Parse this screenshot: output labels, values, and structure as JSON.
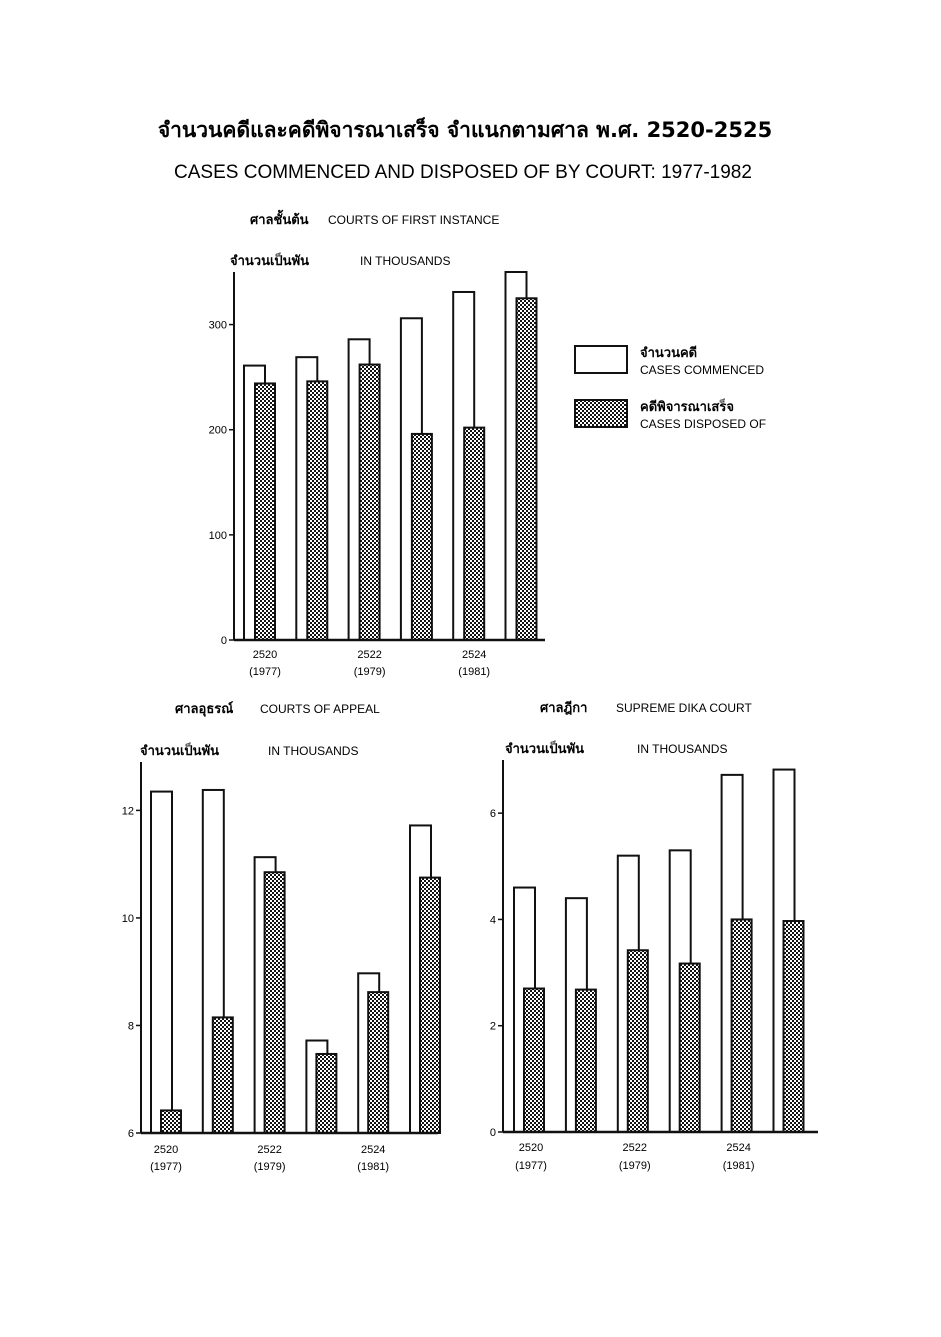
{
  "title": {
    "thai": "จำนวนคดีและคดีพิจารณาเสร็จ จำแนกตามศาล พ.ศ. 2520-2525",
    "english": "CASES COMMENCED AND DISPOSED OF BY COURT: 1977-1982"
  },
  "legend": {
    "commenced_thai": "จำนวนคดี",
    "commenced_eng": "CASES COMMENCED",
    "disposed_thai": "คดีพิจารณาเสร็จ",
    "disposed_eng": "CASES DISPOSED OF"
  },
  "chart_data": [
    {
      "type": "bar",
      "title_thai": "ศาลชั้นต้น",
      "title": "COURTS OF FIRST INSTANCE",
      "unit_thai": "จำนวนเป็นพัน",
      "unit": "IN THOUSANDS",
      "x_labels": [
        {
          "index": 0,
          "year": "2520",
          "ce": "(1977)"
        },
        {
          "index": 2,
          "year": "2522",
          "ce": "(1979)"
        },
        {
          "index": 4,
          "year": "2524",
          "ce": "(1981)"
        }
      ],
      "yticks": [
        0,
        100,
        200,
        300
      ],
      "ylim": [
        0,
        350
      ],
      "series": [
        {
          "name": "CASES COMMENCED",
          "values": [
            261,
            269,
            286,
            306,
            331,
            350
          ]
        },
        {
          "name": "CASES DISPOSED OF",
          "values": [
            244,
            246,
            262,
            196,
            202,
            325
          ]
        }
      ]
    },
    {
      "type": "bar",
      "title_thai": "ศาลอุธรณ์",
      "title": "COURTS OF APPEAL",
      "unit_thai": "จำนวนเป็นพัน",
      "unit": "IN THOUSANDS",
      "x_labels": [
        {
          "index": 0,
          "year": "2520",
          "ce": "(1977)"
        },
        {
          "index": 2,
          "year": "2522",
          "ce": "(1979)"
        },
        {
          "index": 4,
          "year": "2524",
          "ce": "(1981)"
        }
      ],
      "yticks": [
        6,
        8,
        10,
        12
      ],
      "ylim": [
        6,
        12.9
      ],
      "series": [
        {
          "name": "CASES COMMENCED",
          "values": [
            12.35,
            12.38,
            11.13,
            7.72,
            8.97,
            11.72
          ]
        },
        {
          "name": "CASES DISPOSED OF",
          "values": [
            6.42,
            8.15,
            10.85,
            7.47,
            8.62,
            10.75
          ]
        }
      ]
    },
    {
      "type": "bar",
      "title_thai": "ศาลฎีกา",
      "title": "SUPREME DIKA COURT",
      "unit_thai": "จำนวนเป็นพัน",
      "unit": "IN THOUSANDS",
      "x_labels": [
        {
          "index": 0,
          "year": "2520",
          "ce": "(1977)"
        },
        {
          "index": 2,
          "year": "2522",
          "ce": "(1979)"
        },
        {
          "index": 4,
          "year": "2524",
          "ce": "(1981)"
        }
      ],
      "yticks": [
        0,
        2,
        4,
        6
      ],
      "ylim": [
        0,
        7
      ],
      "series": [
        {
          "name": "CASES COMMENCED",
          "values": [
            4.6,
            4.4,
            5.2,
            5.3,
            6.72,
            6.82
          ]
        },
        {
          "name": "CASES DISPOSED OF",
          "values": [
            2.7,
            2.68,
            3.42,
            3.17,
            4.0,
            3.97
          ]
        }
      ]
    }
  ]
}
